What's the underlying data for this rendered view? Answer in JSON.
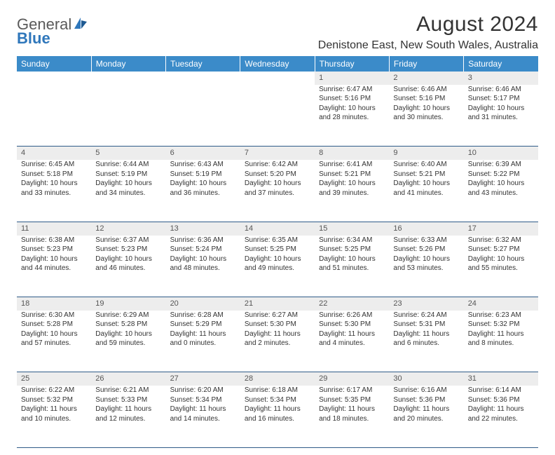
{
  "logo": {
    "text1": "General",
    "text2": "Blue"
  },
  "title": "August 2024",
  "location": "Denistone East, New South Wales, Australia",
  "colors": {
    "header_bg": "#3b8bc9",
    "header_text": "#ffffff",
    "daynum_bg": "#ededed",
    "border": "#2f5b88",
    "logo_gray": "#5a5a5a",
    "logo_blue": "#2f77bb"
  },
  "weekdays": [
    "Sunday",
    "Monday",
    "Tuesday",
    "Wednesday",
    "Thursday",
    "Friday",
    "Saturday"
  ],
  "weeks": [
    [
      null,
      null,
      null,
      null,
      {
        "n": "1",
        "sr": "Sunrise: 6:47 AM",
        "ss": "Sunset: 5:16 PM",
        "d1": "Daylight: 10 hours",
        "d2": "and 28 minutes."
      },
      {
        "n": "2",
        "sr": "Sunrise: 6:46 AM",
        "ss": "Sunset: 5:16 PM",
        "d1": "Daylight: 10 hours",
        "d2": "and 30 minutes."
      },
      {
        "n": "3",
        "sr": "Sunrise: 6:46 AM",
        "ss": "Sunset: 5:17 PM",
        "d1": "Daylight: 10 hours",
        "d2": "and 31 minutes."
      }
    ],
    [
      {
        "n": "4",
        "sr": "Sunrise: 6:45 AM",
        "ss": "Sunset: 5:18 PM",
        "d1": "Daylight: 10 hours",
        "d2": "and 33 minutes."
      },
      {
        "n": "5",
        "sr": "Sunrise: 6:44 AM",
        "ss": "Sunset: 5:19 PM",
        "d1": "Daylight: 10 hours",
        "d2": "and 34 minutes."
      },
      {
        "n": "6",
        "sr": "Sunrise: 6:43 AM",
        "ss": "Sunset: 5:19 PM",
        "d1": "Daylight: 10 hours",
        "d2": "and 36 minutes."
      },
      {
        "n": "7",
        "sr": "Sunrise: 6:42 AM",
        "ss": "Sunset: 5:20 PM",
        "d1": "Daylight: 10 hours",
        "d2": "and 37 minutes."
      },
      {
        "n": "8",
        "sr": "Sunrise: 6:41 AM",
        "ss": "Sunset: 5:21 PM",
        "d1": "Daylight: 10 hours",
        "d2": "and 39 minutes."
      },
      {
        "n": "9",
        "sr": "Sunrise: 6:40 AM",
        "ss": "Sunset: 5:21 PM",
        "d1": "Daylight: 10 hours",
        "d2": "and 41 minutes."
      },
      {
        "n": "10",
        "sr": "Sunrise: 6:39 AM",
        "ss": "Sunset: 5:22 PM",
        "d1": "Daylight: 10 hours",
        "d2": "and 43 minutes."
      }
    ],
    [
      {
        "n": "11",
        "sr": "Sunrise: 6:38 AM",
        "ss": "Sunset: 5:23 PM",
        "d1": "Daylight: 10 hours",
        "d2": "and 44 minutes."
      },
      {
        "n": "12",
        "sr": "Sunrise: 6:37 AM",
        "ss": "Sunset: 5:23 PM",
        "d1": "Daylight: 10 hours",
        "d2": "and 46 minutes."
      },
      {
        "n": "13",
        "sr": "Sunrise: 6:36 AM",
        "ss": "Sunset: 5:24 PM",
        "d1": "Daylight: 10 hours",
        "d2": "and 48 minutes."
      },
      {
        "n": "14",
        "sr": "Sunrise: 6:35 AM",
        "ss": "Sunset: 5:25 PM",
        "d1": "Daylight: 10 hours",
        "d2": "and 49 minutes."
      },
      {
        "n": "15",
        "sr": "Sunrise: 6:34 AM",
        "ss": "Sunset: 5:25 PM",
        "d1": "Daylight: 10 hours",
        "d2": "and 51 minutes."
      },
      {
        "n": "16",
        "sr": "Sunrise: 6:33 AM",
        "ss": "Sunset: 5:26 PM",
        "d1": "Daylight: 10 hours",
        "d2": "and 53 minutes."
      },
      {
        "n": "17",
        "sr": "Sunrise: 6:32 AM",
        "ss": "Sunset: 5:27 PM",
        "d1": "Daylight: 10 hours",
        "d2": "and 55 minutes."
      }
    ],
    [
      {
        "n": "18",
        "sr": "Sunrise: 6:30 AM",
        "ss": "Sunset: 5:28 PM",
        "d1": "Daylight: 10 hours",
        "d2": "and 57 minutes."
      },
      {
        "n": "19",
        "sr": "Sunrise: 6:29 AM",
        "ss": "Sunset: 5:28 PM",
        "d1": "Daylight: 10 hours",
        "d2": "and 59 minutes."
      },
      {
        "n": "20",
        "sr": "Sunrise: 6:28 AM",
        "ss": "Sunset: 5:29 PM",
        "d1": "Daylight: 11 hours",
        "d2": "and 0 minutes."
      },
      {
        "n": "21",
        "sr": "Sunrise: 6:27 AM",
        "ss": "Sunset: 5:30 PM",
        "d1": "Daylight: 11 hours",
        "d2": "and 2 minutes."
      },
      {
        "n": "22",
        "sr": "Sunrise: 6:26 AM",
        "ss": "Sunset: 5:30 PM",
        "d1": "Daylight: 11 hours",
        "d2": "and 4 minutes."
      },
      {
        "n": "23",
        "sr": "Sunrise: 6:24 AM",
        "ss": "Sunset: 5:31 PM",
        "d1": "Daylight: 11 hours",
        "d2": "and 6 minutes."
      },
      {
        "n": "24",
        "sr": "Sunrise: 6:23 AM",
        "ss": "Sunset: 5:32 PM",
        "d1": "Daylight: 11 hours",
        "d2": "and 8 minutes."
      }
    ],
    [
      {
        "n": "25",
        "sr": "Sunrise: 6:22 AM",
        "ss": "Sunset: 5:32 PM",
        "d1": "Daylight: 11 hours",
        "d2": "and 10 minutes."
      },
      {
        "n": "26",
        "sr": "Sunrise: 6:21 AM",
        "ss": "Sunset: 5:33 PM",
        "d1": "Daylight: 11 hours",
        "d2": "and 12 minutes."
      },
      {
        "n": "27",
        "sr": "Sunrise: 6:20 AM",
        "ss": "Sunset: 5:34 PM",
        "d1": "Daylight: 11 hours",
        "d2": "and 14 minutes."
      },
      {
        "n": "28",
        "sr": "Sunrise: 6:18 AM",
        "ss": "Sunset: 5:34 PM",
        "d1": "Daylight: 11 hours",
        "d2": "and 16 minutes."
      },
      {
        "n": "29",
        "sr": "Sunrise: 6:17 AM",
        "ss": "Sunset: 5:35 PM",
        "d1": "Daylight: 11 hours",
        "d2": "and 18 minutes."
      },
      {
        "n": "30",
        "sr": "Sunrise: 6:16 AM",
        "ss": "Sunset: 5:36 PM",
        "d1": "Daylight: 11 hours",
        "d2": "and 20 minutes."
      },
      {
        "n": "31",
        "sr": "Sunrise: 6:14 AM",
        "ss": "Sunset: 5:36 PM",
        "d1": "Daylight: 11 hours",
        "d2": "and 22 minutes."
      }
    ]
  ]
}
